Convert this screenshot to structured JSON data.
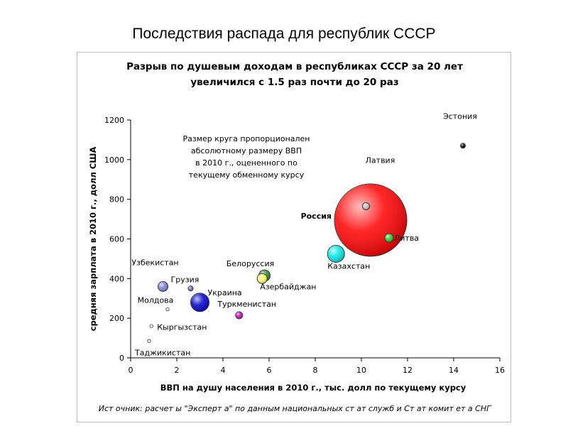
{
  "slide_title": "Последствия распада для республик СССР",
  "chart_data": {
    "type": "scatter",
    "title_lines": [
      "Разрыв по душевым доходам в республиках СССР за 20 лет",
      "увеличился с 1.5 раз почти до 20 раз"
    ],
    "xlabel": "ВВП на душу населения в 2010 г., тыс. долл по текущему курсу",
    "ylabel": "средняя зарплата в 2010 г., долл США",
    "xlim": [
      0,
      16
    ],
    "ylim": [
      0,
      1200
    ],
    "x_ticks": [
      0,
      2,
      4,
      6,
      8,
      10,
      12,
      14,
      16
    ],
    "y_ticks": [
      0,
      200,
      400,
      600,
      800,
      1000,
      1200
    ],
    "grid": false,
    "note_lines": [
      "Размер круга пропорционален",
      "абсолютному размеру ВВП",
      "в 2010 г., оцененного по",
      "текущему обменному курсу"
    ],
    "source": "Ист очник: расчет ы \"Эксперт а\" по данным национальных ст ат служб и Ст ат комит ет а СНГ",
    "points": [
      {
        "name": "Эстония",
        "x": 14.4,
        "y": 1070,
        "color": "#000000",
        "label_bold": false
      },
      {
        "name": "Латвия",
        "x": 10.2,
        "y": 765,
        "color": "#bfbfbf",
        "label_bold": false
      },
      {
        "name": "Россия",
        "x": 10.4,
        "y": 695,
        "color": "#ff0000",
        "label_bold": true
      },
      {
        "name": "Литва",
        "x": 11.2,
        "y": 605,
        "color": "#22cc22",
        "label_bold": false
      },
      {
        "name": "Казахстан",
        "x": 8.9,
        "y": 525,
        "color": "#00e5e5",
        "label_bold": false
      },
      {
        "name": "Белоруссия",
        "x": 5.8,
        "y": 415,
        "color": "#2e8b2e",
        "label_bold": false
      },
      {
        "name": "Азербайджан",
        "x": 5.7,
        "y": 400,
        "color": "#ffff66",
        "label_bold": false
      },
      {
        "name": "Узбекистан",
        "x": 1.4,
        "y": 360,
        "color": "#7b7bd6",
        "label_bold": false
      },
      {
        "name": "Грузия",
        "x": 2.6,
        "y": 350,
        "color": "#6b6bcf",
        "label_bold": false
      },
      {
        "name": "Украина",
        "x": 3.0,
        "y": 280,
        "color": "#0000cc",
        "label_bold": false
      },
      {
        "name": "Молдова",
        "x": 1.6,
        "y": 245,
        "color": "#ffffff",
        "label_bold": false
      },
      {
        "name": "Туркменистан",
        "x": 4.7,
        "y": 215,
        "color": "#cc00cc",
        "label_bold": false
      },
      {
        "name": "Кыргызстан",
        "x": 0.9,
        "y": 160,
        "color": "#ffffff",
        "label_bold": false
      },
      {
        "name": "Таджикистан",
        "x": 0.8,
        "y": 85,
        "color": "#ffffff",
        "label_bold": false
      }
    ]
  }
}
